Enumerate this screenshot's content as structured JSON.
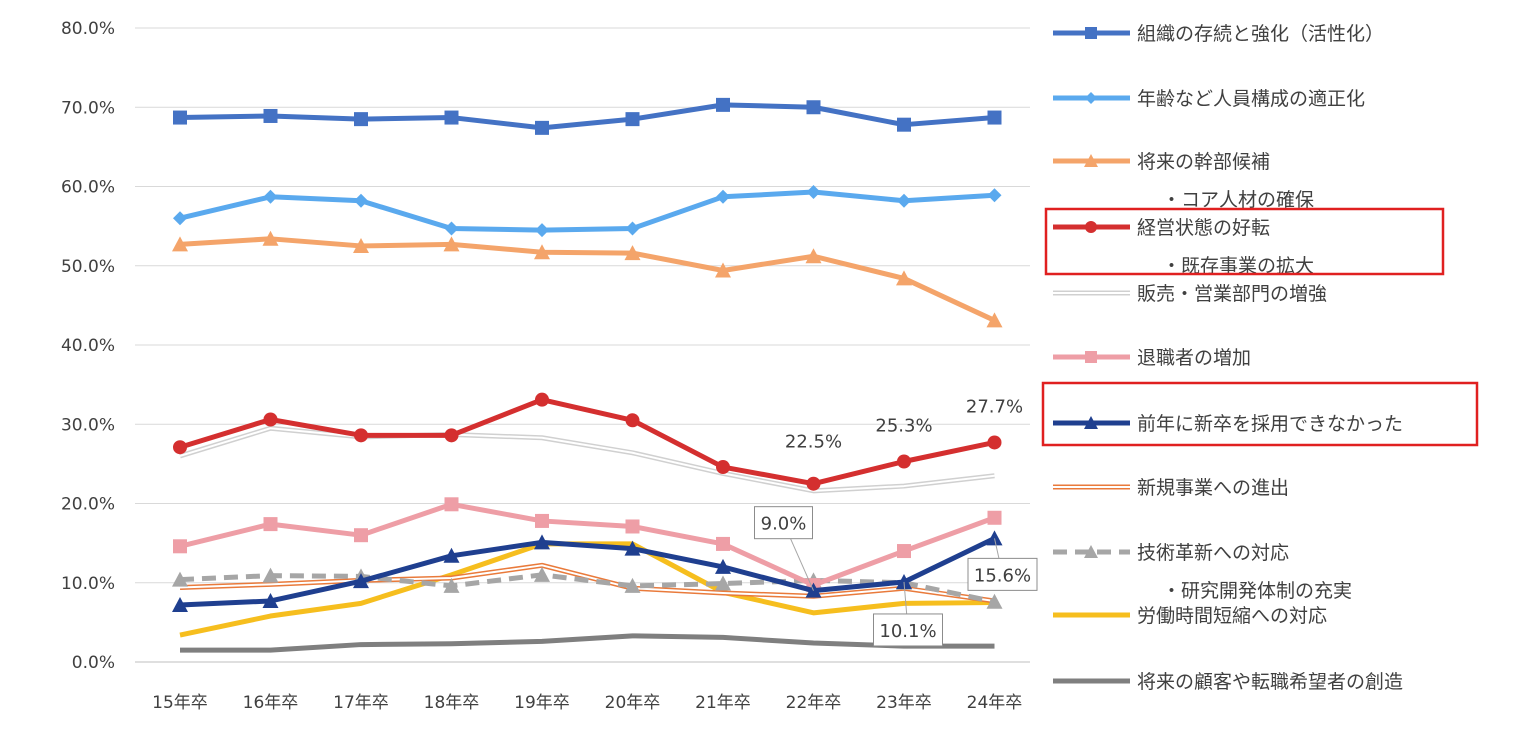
{
  "chart_data": {
    "type": "line",
    "categories": [
      "15年卒",
      "16年卒",
      "17年卒",
      "18年卒",
      "19年卒",
      "20年卒",
      "21年卒",
      "22年卒",
      "23年卒",
      "24年卒"
    ],
    "ylim": [
      0,
      80
    ],
    "y_ticks": [
      "0.0%",
      "10.0%",
      "20.0%",
      "30.0%",
      "40.0%",
      "50.0%",
      "60.0%",
      "70.0%",
      "80.0%"
    ],
    "grid": true,
    "legend_position": "right",
    "series": [
      {
        "name": "組織の存続と強化（活性化）",
        "color": "#4472C4",
        "marker": "square",
        "values": [
          68.7,
          68.9,
          68.5,
          68.7,
          67.4,
          68.5,
          70.3,
          70.0,
          67.8,
          68.7
        ]
      },
      {
        "name": "年齢など人員構成の適正化",
        "color": "#5AA9EE",
        "marker": "diamond",
        "values": [
          56.0,
          58.7,
          58.2,
          54.7,
          54.5,
          54.7,
          58.7,
          59.3,
          58.2,
          58.9
        ]
      },
      {
        "name": "将来の幹部候補",
        "name_line2": "・コア人材の確保",
        "color": "#F4A46A",
        "marker": "triangle",
        "values": [
          52.7,
          53.4,
          52.5,
          52.7,
          51.7,
          51.6,
          49.4,
          51.2,
          48.4,
          43.1
        ]
      },
      {
        "name": "経営状態の好転",
        "name_line2": "・既存事業の拡大",
        "color": "#D42F2F",
        "marker": "circle",
        "values": [
          27.1,
          30.6,
          28.6,
          28.6,
          33.1,
          30.5,
          24.6,
          22.5,
          25.3,
          27.7
        ]
      },
      {
        "name": "販売・営業部門の増強",
        "color": "#D0D0D0",
        "style": "double",
        "values": [
          26.0,
          29.5,
          28.4,
          28.7,
          28.3,
          26.4,
          23.8,
          21.6,
          22.2,
          23.5
        ]
      },
      {
        "name": "退職者の増加",
        "color": "#EE9EA6",
        "marker": "square",
        "values": [
          14.6,
          17.4,
          16.0,
          19.9,
          17.8,
          17.1,
          14.9,
          9.7,
          14.0,
          18.2
        ]
      },
      {
        "name": "前年に新卒を採用できなかった",
        "color": "#1F3F8F",
        "marker": "triangle",
        "values": [
          7.2,
          7.7,
          10.2,
          13.4,
          15.1,
          14.3,
          12.0,
          9.0,
          10.1,
          15.6
        ]
      },
      {
        "name": "新規事業への進出",
        "color": "#E97A3B",
        "style": "double",
        "values": [
          9.4,
          9.8,
          10.3,
          10.6,
          12.2,
          9.3,
          8.7,
          8.3,
          9.3,
          7.7
        ]
      },
      {
        "name": "技術革新への対応",
        "name_line2": "・研究開発体制の充実",
        "color": "#A6A6A6",
        "dash": true,
        "marker": "triangle",
        "values": [
          10.4,
          10.9,
          10.8,
          9.6,
          11.0,
          9.6,
          9.9,
          10.3,
          10.0,
          7.6
        ]
      },
      {
        "name": "労働時間短縮への対応",
        "color": "#F6BE1E",
        "values": [
          3.4,
          5.8,
          7.4,
          11.0,
          14.9,
          14.9,
          8.8,
          6.2,
          7.4,
          7.5
        ]
      },
      {
        "name": "将来の顧客や転職希望者の創造",
        "color": "#7F7F7F",
        "values": [
          1.5,
          1.5,
          2.2,
          2.3,
          2.6,
          3.3,
          3.1,
          2.4,
          2.0,
          2.0
        ]
      }
    ],
    "data_labels": [
      {
        "series": 3,
        "index": 7,
        "text": "22.5%"
      },
      {
        "series": 3,
        "index": 8,
        "text": "25.3%"
      },
      {
        "series": 3,
        "index": 9,
        "text": "27.7%"
      },
      {
        "series": 6,
        "index": 7,
        "text": "9.0%",
        "boxed": true
      },
      {
        "series": 6,
        "index": 8,
        "text": "10.1%",
        "boxed": true
      },
      {
        "series": 6,
        "index": 9,
        "text": "15.6%",
        "boxed": true
      }
    ],
    "highlighted_legend_entries": [
      3,
      6
    ],
    "highlight_color": "#E02020"
  }
}
